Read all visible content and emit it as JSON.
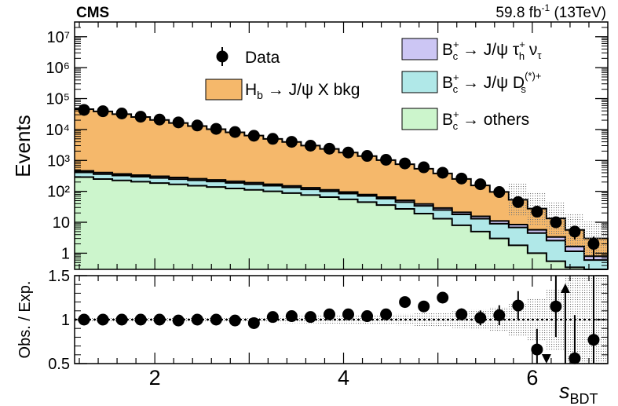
{
  "header": {
    "experiment": "CMS",
    "luminosity": "59.8 fb",
    "lumi_unit_exp": "-1",
    "energy": " (13TeV)"
  },
  "chart_data": [
    {
      "type": "area",
      "panel": "main",
      "ylabel": "Events",
      "yscale": "log",
      "ylim": [
        0.3,
        30000000
      ],
      "xlim": [
        1.15,
        6.8
      ],
      "ytick_labels": [
        "10⁷",
        "10⁶",
        "10⁵",
        "10⁴",
        "10³",
        "10²",
        "10",
        "1"
      ],
      "legend": {
        "data": "Data",
        "hb_bkg": "H_b → J/ψ X bkg",
        "tau": "B_c^+ → J/ψ τ_h^+ ν_τ",
        "ds": "B_c^+ → J/ψ D_s^(*)+",
        "others": "B_c^+ → others"
      },
      "bin_edges": [
        1.15,
        1.35,
        1.55,
        1.75,
        1.95,
        2.15,
        2.35,
        2.55,
        2.75,
        2.95,
        3.15,
        3.35,
        3.55,
        3.75,
        3.95,
        4.15,
        4.35,
        4.55,
        4.75,
        4.95,
        5.15,
        5.35,
        5.55,
        5.75,
        5.95,
        6.15,
        6.35,
        6.55,
        6.8
      ],
      "series": [
        {
          "name": "B_c^+ → others",
          "color": "#ccf5cc",
          "values": [
            290,
            250,
            225,
            205,
            185,
            168,
            152,
            138,
            124,
            112,
            100,
            88,
            76,
            65,
            55,
            45,
            36,
            27,
            19,
            13,
            8,
            5,
            3,
            1.8,
            1,
            0.55,
            0.35,
            0.3
          ]
        },
        {
          "name": "B_c^+ → J/ψ D_s^(*)+",
          "color": "#b0e8e8",
          "values": [
            120,
            110,
            100,
            92,
            86,
            80,
            75,
            70,
            64,
            58,
            52,
            46,
            40,
            35,
            30,
            26,
            22,
            18,
            15,
            12,
            10,
            8,
            6,
            5,
            3.5,
            2,
            0.8,
            0.3
          ]
        },
        {
          "name": "B_c^+ → J/ψ τ_h^+ ν_τ",
          "color": "#ccc6f4",
          "values": [
            50,
            45,
            41,
            38,
            35,
            32,
            29,
            26,
            23,
            20,
            18,
            16,
            14,
            12,
            10,
            8,
            7,
            6,
            5,
            4,
            3,
            2.5,
            2,
            1.6,
            1.2,
            0.8,
            0.5,
            0.2
          ]
        },
        {
          "name": "H_b → J/ψ X bkg",
          "color": "#f5b86b",
          "values": [
            45000,
            38000,
            31000,
            25000,
            20000,
            16000,
            12700,
            10000,
            7900,
            6200,
            4800,
            3800,
            2900,
            2250,
            1700,
            1300,
            960,
            700,
            500,
            350,
            230,
            140,
            85,
            45,
            22,
            10,
            4,
            2.2
          ]
        }
      ],
      "data_points": [
        {
          "x": 1.25,
          "y": 43000
        },
        {
          "x": 1.45,
          "y": 39000
        },
        {
          "x": 1.65,
          "y": 33000
        },
        {
          "x": 1.85,
          "y": 26000
        },
        {
          "x": 2.05,
          "y": 21000
        },
        {
          "x": 2.25,
          "y": 17000
        },
        {
          "x": 2.45,
          "y": 13500
        },
        {
          "x": 2.65,
          "y": 10500
        },
        {
          "x": 2.85,
          "y": 8300
        },
        {
          "x": 3.05,
          "y": 6300
        },
        {
          "x": 3.25,
          "y": 5000
        },
        {
          "x": 3.45,
          "y": 4000
        },
        {
          "x": 3.65,
          "y": 3000
        },
        {
          "x": 3.85,
          "y": 2400
        },
        {
          "x": 4.05,
          "y": 1800
        },
        {
          "x": 4.25,
          "y": 1400
        },
        {
          "x": 4.45,
          "y": 1050
        },
        {
          "x": 4.65,
          "y": 800
        },
        {
          "x": 4.85,
          "y": 600
        },
        {
          "x": 5.05,
          "y": 400
        },
        {
          "x": 5.25,
          "y": 260
        },
        {
          "x": 5.45,
          "y": 170
        },
        {
          "x": 5.65,
          "y": 95
        },
        {
          "x": 5.85,
          "y": 45
        },
        {
          "x": 6.05,
          "y": 22
        },
        {
          "x": 6.25,
          "y": 10
        },
        {
          "x": 6.45,
          "y": 5
        },
        {
          "x": 6.65,
          "y": 2
        }
      ]
    },
    {
      "type": "scatter",
      "panel": "ratio",
      "ylabel": "Obs. / Exp.",
      "xlabel": "s_BDT",
      "ylim": [
        0.5,
        1.5
      ],
      "xlim": [
        1.15,
        6.8
      ],
      "xtick_labels": [
        "2",
        "4",
        "6"
      ],
      "ytick_labels": [
        "1.5",
        "1",
        "0.5"
      ],
      "reference_line": 1.0,
      "points": [
        {
          "x": 1.25,
          "y": 1.0
        },
        {
          "x": 1.45,
          "y": 1.0
        },
        {
          "x": 1.65,
          "y": 1.0
        },
        {
          "x": 1.85,
          "y": 1.0
        },
        {
          "x": 2.05,
          "y": 1.0
        },
        {
          "x": 2.25,
          "y": 0.99
        },
        {
          "x": 2.45,
          "y": 1.0
        },
        {
          "x": 2.65,
          "y": 1.0
        },
        {
          "x": 2.85,
          "y": 0.99
        },
        {
          "x": 3.05,
          "y": 0.96
        },
        {
          "x": 3.25,
          "y": 1.03
        },
        {
          "x": 3.45,
          "y": 1.04
        },
        {
          "x": 3.65,
          "y": 1.03
        },
        {
          "x": 3.85,
          "y": 1.06
        },
        {
          "x": 4.05,
          "y": 1.06
        },
        {
          "x": 4.25,
          "y": 1.04
        },
        {
          "x": 4.45,
          "y": 1.06
        },
        {
          "x": 4.65,
          "y": 1.2
        },
        {
          "x": 4.85,
          "y": 1.15
        },
        {
          "x": 5.05,
          "y": 1.25
        },
        {
          "x": 5.25,
          "y": 1.06
        },
        {
          "x": 5.45,
          "y": 1.02
        },
        {
          "x": 5.65,
          "y": 1.05
        },
        {
          "x": 5.85,
          "y": 1.16
        },
        {
          "x": 6.05,
          "y": 0.66
        },
        {
          "x": 6.25,
          "y": 1.15
        },
        {
          "x": 6.45,
          "y": 0.56
        },
        {
          "x": 6.65,
          "y": 0.77
        }
      ]
    }
  ]
}
